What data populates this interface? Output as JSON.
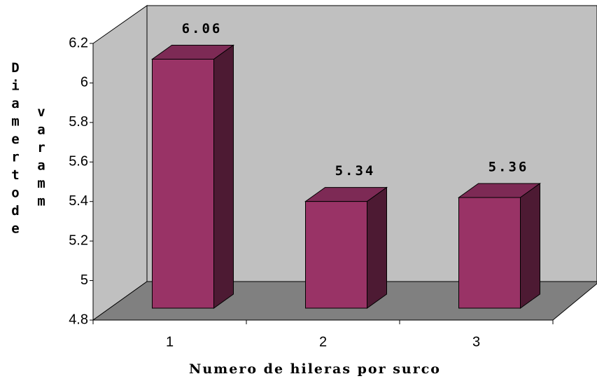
{
  "chart_data": {
    "type": "bar3d",
    "y_label": [
      "Diamerto de",
      "vara mm"
    ],
    "x_label": "Numero de hileras por surco",
    "categories": [
      "1",
      "2",
      "3"
    ],
    "values": [
      6.06,
      5.34,
      5.36
    ],
    "value_labels": [
      "6.06",
      "5.34",
      "5.36"
    ],
    "color": "#993366",
    "ylim": [
      4.8,
      6.2
    ],
    "yticks": [
      4.8,
      5,
      5.2,
      5.4,
      5.6,
      5.8,
      6,
      6.2
    ]
  }
}
